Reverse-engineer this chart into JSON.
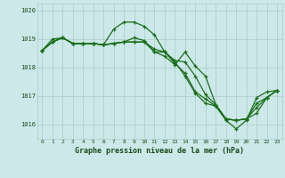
{
  "background_color": "#cce8e8",
  "grid_color": "#aacccc",
  "line_color": "#1a6e1a",
  "marker_color": "#1a6e1a",
  "title": "Graphe pression niveau de la mer (hPa)",
  "xlim": [
    -0.5,
    23.5
  ],
  "ylim": [
    1015.5,
    1020.25
  ],
  "yticks": [
    1016,
    1017,
    1018,
    1019,
    1020
  ],
  "xticks": [
    0,
    1,
    2,
    3,
    4,
    5,
    6,
    7,
    8,
    9,
    10,
    11,
    12,
    13,
    14,
    15,
    16,
    17,
    18,
    19,
    20,
    21,
    22,
    23
  ],
  "series": [
    [
      1018.6,
      1018.9,
      1019.05,
      1018.85,
      1018.85,
      1018.85,
      1018.8,
      1019.35,
      1019.6,
      1019.6,
      1019.45,
      1019.15,
      1018.55,
      1018.2,
      1017.7,
      1017.1,
      1016.75,
      1016.65,
      1016.15,
      1015.85,
      1016.15,
      1016.95,
      1017.15,
      1017.2
    ],
    [
      1018.6,
      1019.0,
      1019.05,
      1018.85,
      1018.85,
      1018.85,
      1018.8,
      1018.85,
      1018.9,
      1019.05,
      1018.95,
      1018.55,
      1018.55,
      1018.25,
      1018.2,
      1017.7,
      1017.05,
      1016.7,
      1016.2,
      1016.15,
      1016.2,
      1016.6,
      1016.95,
      1017.2
    ],
    [
      1018.6,
      1018.9,
      1019.05,
      1018.85,
      1018.85,
      1018.85,
      1018.8,
      1018.85,
      1018.9,
      1018.9,
      1018.9,
      1018.65,
      1018.55,
      1018.15,
      1017.8,
      1017.15,
      1016.9,
      1016.65,
      1016.2,
      1016.15,
      1016.2,
      1016.75,
      1016.95,
      1017.2
    ],
    [
      1018.6,
      1018.9,
      1019.05,
      1018.85,
      1018.85,
      1018.85,
      1018.8,
      1018.85,
      1018.9,
      1018.9,
      1018.9,
      1018.55,
      1018.4,
      1018.1,
      1018.55,
      1018.05,
      1017.7,
      1016.7,
      1016.2,
      1016.15,
      1016.2,
      1016.4,
      1016.95,
      1017.2
    ]
  ]
}
